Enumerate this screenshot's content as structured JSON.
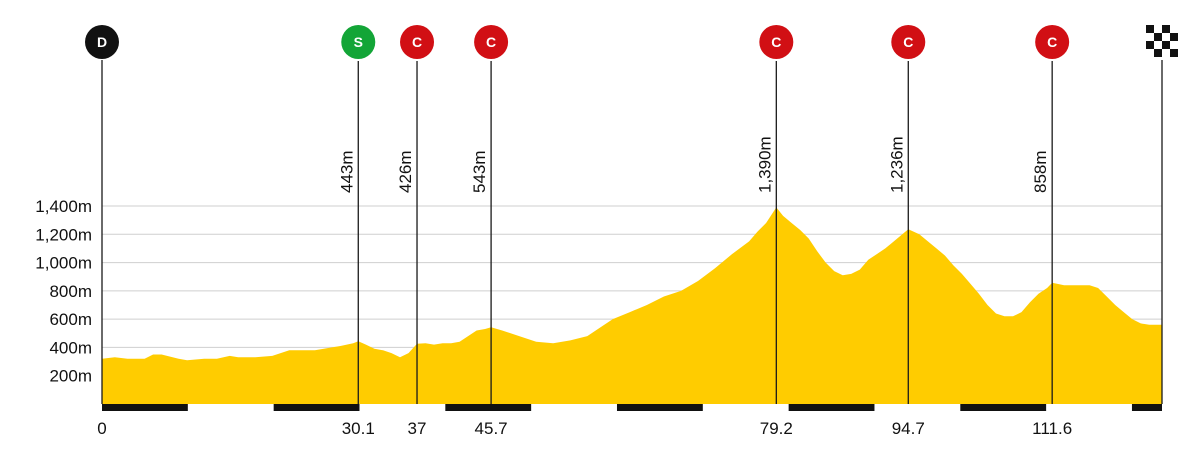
{
  "chart_data": {
    "type": "area",
    "title": "",
    "xlabel": "",
    "ylabel": "",
    "xlim": [
      0,
      124.5
    ],
    "ylim": [
      0,
      1400
    ],
    "y_ticks": [
      200,
      400,
      600,
      800,
      1000,
      1200,
      1400
    ],
    "y_tick_labels": [
      "200m",
      "400m",
      "600m",
      "800m",
      "1,000m",
      "1,200m",
      "1,400m"
    ],
    "grid": true,
    "fill_color": "#ffcc00",
    "profile": {
      "x": [
        0,
        1.5,
        3,
        5,
        6,
        7,
        9,
        10,
        12,
        13.5,
        15,
        16,
        18,
        20,
        22,
        23,
        25,
        27,
        28,
        29.5,
        30.1,
        31,
        32,
        33,
        34,
        35,
        36,
        37,
        38,
        39,
        40,
        41,
        42,
        43,
        44,
        45,
        45.7,
        47,
        49,
        51,
        53,
        55,
        57,
        59,
        60,
        62,
        64,
        66,
        68,
        70,
        72,
        74,
        76,
        77,
        78,
        79.2,
        80,
        81,
        82,
        83,
        84,
        85,
        86,
        87,
        88,
        89,
        90,
        91,
        92,
        93,
        94,
        94.7,
        96,
        97,
        98,
        99,
        100,
        101,
        102,
        103,
        104,
        105,
        106,
        107,
        108,
        109,
        110,
        111,
        111.6,
        113,
        114,
        115,
        116,
        117,
        118,
        119,
        120,
        121,
        122,
        123,
        124.5
      ],
      "y": [
        320,
        330,
        320,
        320,
        350,
        350,
        320,
        310,
        320,
        320,
        340,
        330,
        330,
        340,
        380,
        380,
        380,
        400,
        410,
        430,
        443,
        420,
        390,
        380,
        360,
        330,
        360,
        426,
        430,
        420,
        430,
        430,
        440,
        480,
        520,
        530,
        543,
        520,
        480,
        440,
        430,
        450,
        480,
        560,
        600,
        650,
        700,
        760,
        800,
        870,
        960,
        1060,
        1150,
        1220,
        1280,
        1390,
        1330,
        1280,
        1230,
        1170,
        1080,
        1000,
        940,
        910,
        920,
        950,
        1020,
        1060,
        1100,
        1150,
        1200,
        1236,
        1200,
        1150,
        1100,
        1050,
        980,
        920,
        850,
        780,
        700,
        640,
        620,
        620,
        650,
        720,
        780,
        820,
        858,
        840,
        840,
        840,
        840,
        820,
        760,
        700,
        650,
        600,
        570,
        560,
        560
      ]
    },
    "markers": [
      {
        "type": "start",
        "letter": "D",
        "x": 0,
        "color": "#111111"
      },
      {
        "type": "sprint",
        "letter": "S",
        "x": 30.1,
        "altitude": "443m",
        "km_label": "30.1",
        "color": "#13a537"
      },
      {
        "type": "climb",
        "letter": "C",
        "x": 37,
        "altitude": "426m",
        "km_label": "37",
        "color": "#d10f14"
      },
      {
        "type": "climb",
        "letter": "C",
        "x": 45.7,
        "altitude": "543m",
        "km_label": "45.7",
        "color": "#d10f14"
      },
      {
        "type": "climb",
        "letter": "C",
        "x": 79.2,
        "altitude": "1,390m",
        "km_label": "79.2",
        "color": "#d10f14"
      },
      {
        "type": "climb",
        "letter": "C",
        "x": 94.7,
        "altitude": "1,236m",
        "km_label": "94.7",
        "color": "#d10f14"
      },
      {
        "type": "climb",
        "letter": "C",
        "x": 111.6,
        "altitude": "858m",
        "km_label": "111.6",
        "color": "#d10f14"
      },
      {
        "type": "finish",
        "x": 124.5,
        "icon": "checkered-flag-icon",
        "color": "#111111"
      }
    ],
    "x_tick_labels": [
      {
        "x": 0,
        "label": "0"
      },
      {
        "x": 30.1,
        "label": "30.1"
      },
      {
        "x": 37,
        "label": "37"
      },
      {
        "x": 45.7,
        "label": "45.7"
      },
      {
        "x": 79.2,
        "label": "79.2"
      },
      {
        "x": 94.7,
        "label": "94.7"
      },
      {
        "x": 111.6,
        "label": "111.6"
      }
    ],
    "distance_scale_color": "#111111"
  }
}
